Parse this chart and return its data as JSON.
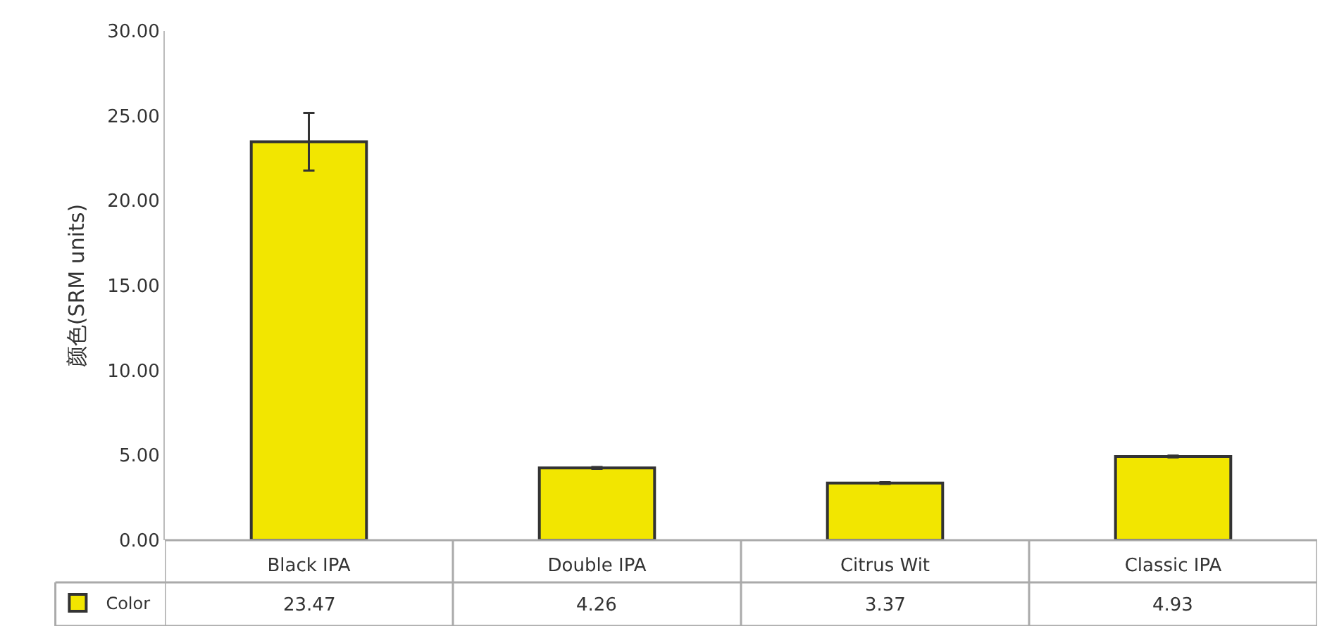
{
  "chart_data": {
    "type": "bar",
    "ylabel": "颜色(SRM units)",
    "categories": [
      "Black IPA",
      "Double IPA",
      "Citrus Wit",
      "Classic IPA"
    ],
    "series": [
      {
        "name": "Color",
        "color": "#f2e600",
        "values": [
          23.47,
          4.26,
          3.37,
          4.93
        ],
        "errors": [
          1.7,
          0.05,
          0.05,
          0.05
        ]
      }
    ],
    "ylim": [
      0,
      30
    ],
    "yticks": [
      {
        "value": 0,
        "label": "0.00"
      },
      {
        "value": 5,
        "label": "5.00"
      },
      {
        "value": 10,
        "label": "10.00"
      },
      {
        "value": 15,
        "label": "15.00"
      },
      {
        "value": 20,
        "label": "20.00"
      },
      {
        "value": 25,
        "label": "25.00"
      },
      {
        "value": 30,
        "label": "30.00"
      }
    ],
    "data_labels": true,
    "legend": "bottom left"
  }
}
